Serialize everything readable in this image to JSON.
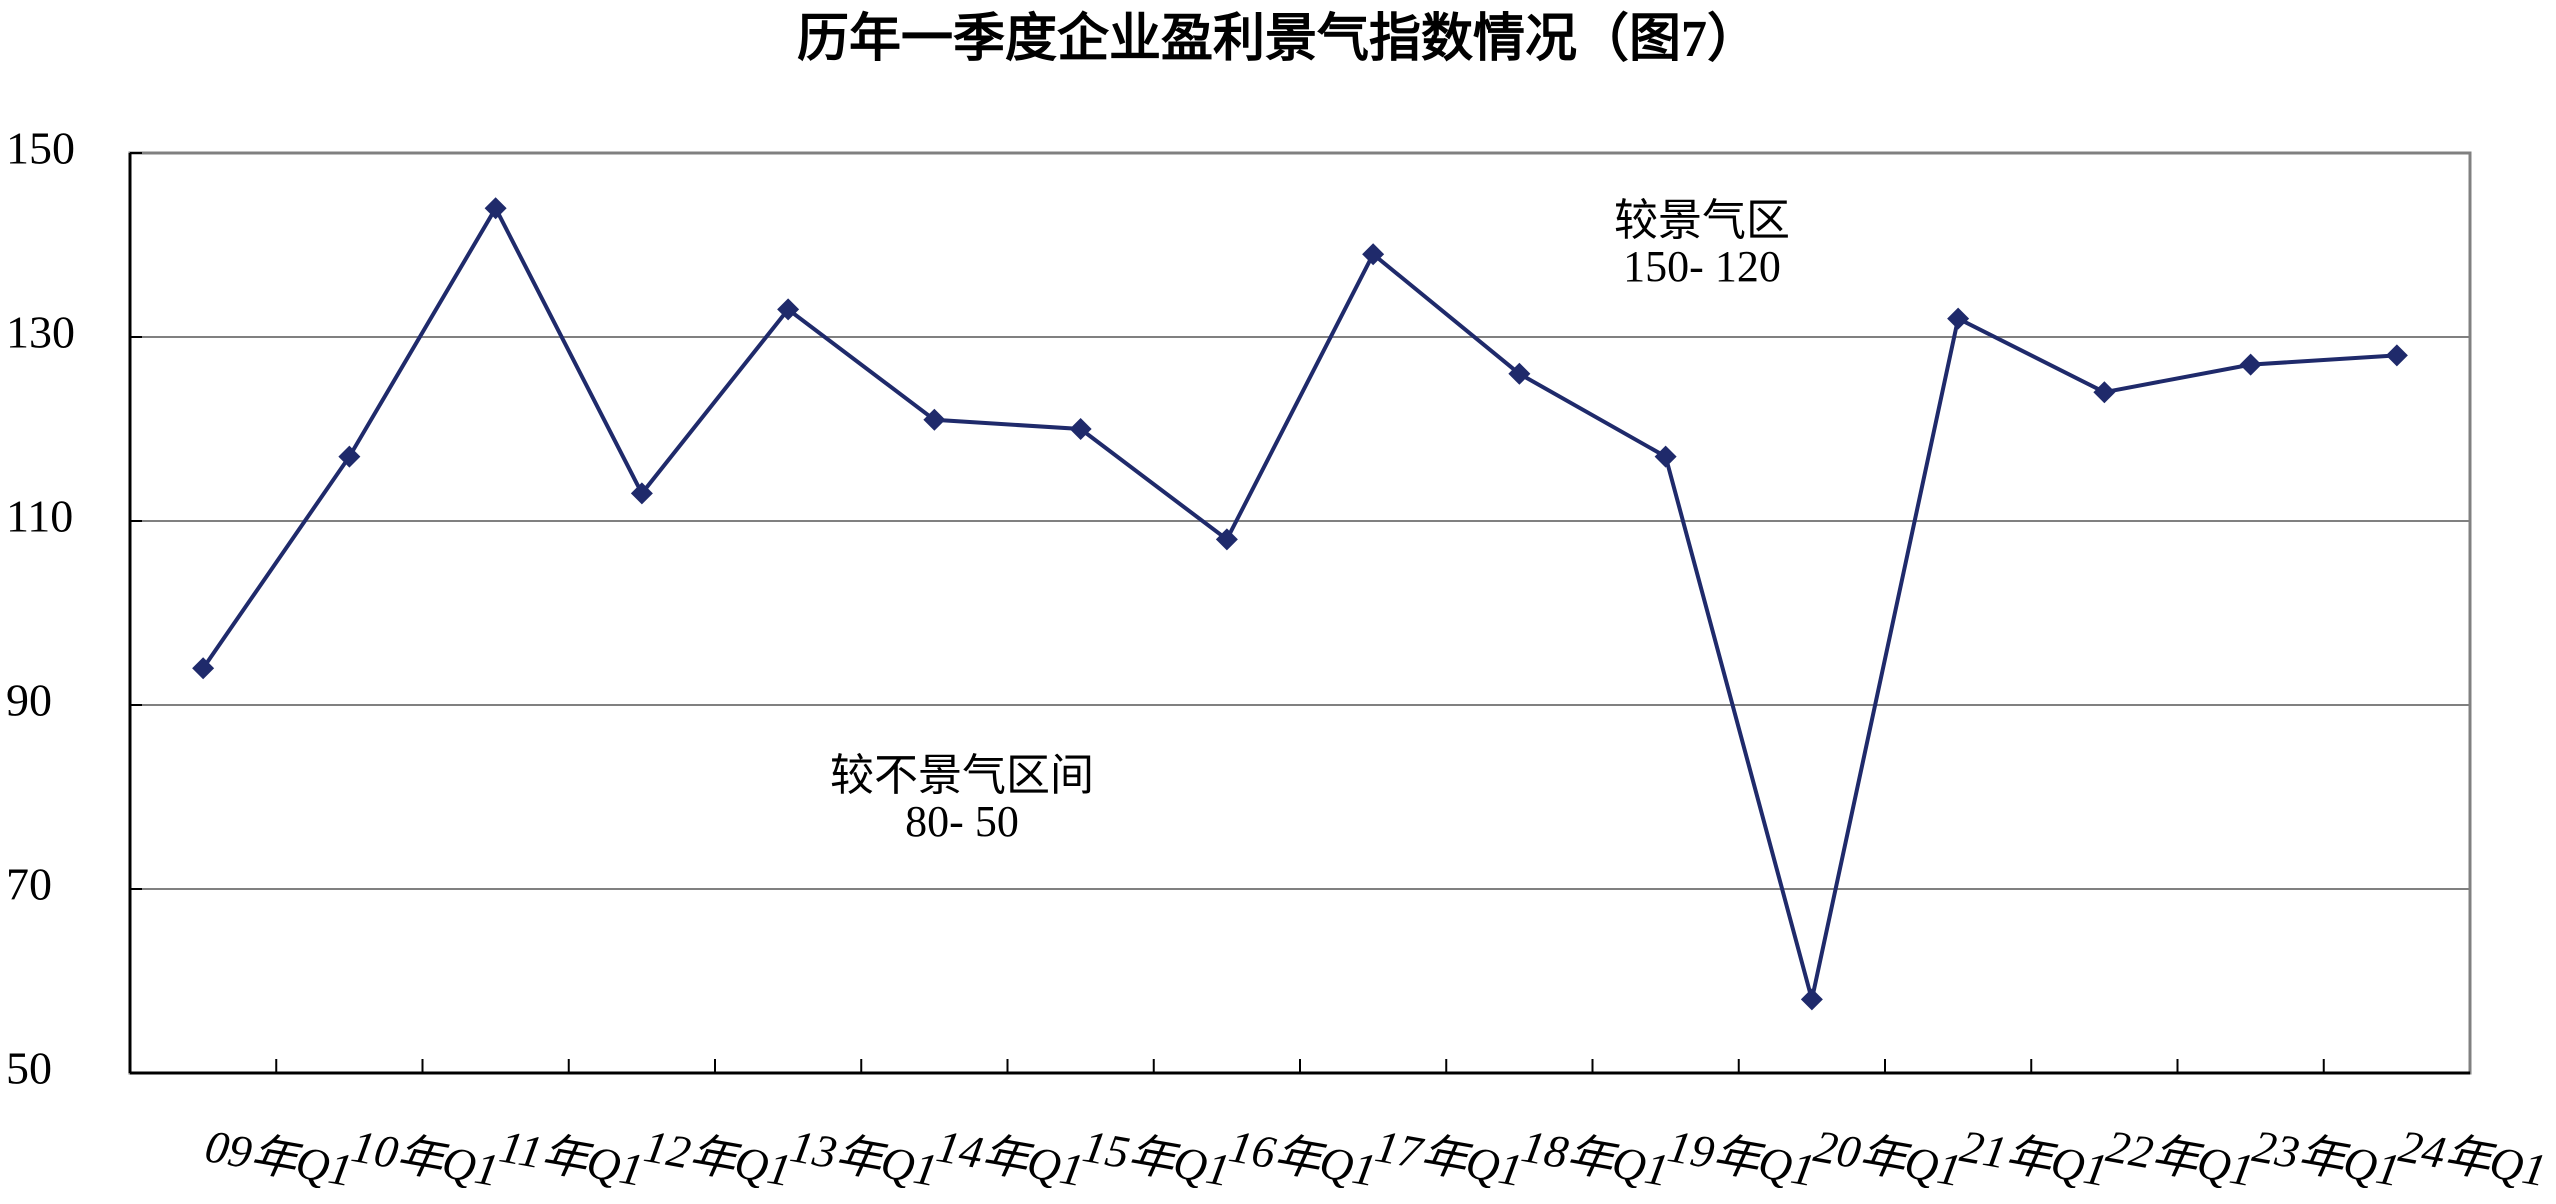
{
  "chart_data": {
    "type": "line",
    "title": "历年一季度企业盈利景气指数情况（图7）",
    "categories": [
      "09年Q1",
      "10年Q1",
      "11年Q1",
      "12年Q1",
      "13年Q1",
      "14年Q1",
      "15年Q1",
      "16年Q1",
      "17年Q1",
      "18年Q1",
      "19年Q1",
      "20年Q1",
      "21年Q1",
      "22年Q1",
      "23年Q1",
      "24年Q1"
    ],
    "series": [
      {
        "name": "企业盈利景气指数",
        "color": "#1f2a6b",
        "values": [
          94,
          117,
          144,
          113,
          133,
          121,
          120,
          108,
          139,
          126,
          117,
          58,
          132,
          124,
          127,
          128
        ]
      }
    ],
    "ylim": [
      50,
      150
    ],
    "yticks": [
      50,
      70,
      90,
      110,
      130,
      150
    ],
    "grid": true,
    "annotations": [
      {
        "lines": [
          "较景气区",
          "150- 120"
        ]
      },
      {
        "lines": [
          "较不景气区间",
          "80- 50"
        ]
      }
    ]
  }
}
